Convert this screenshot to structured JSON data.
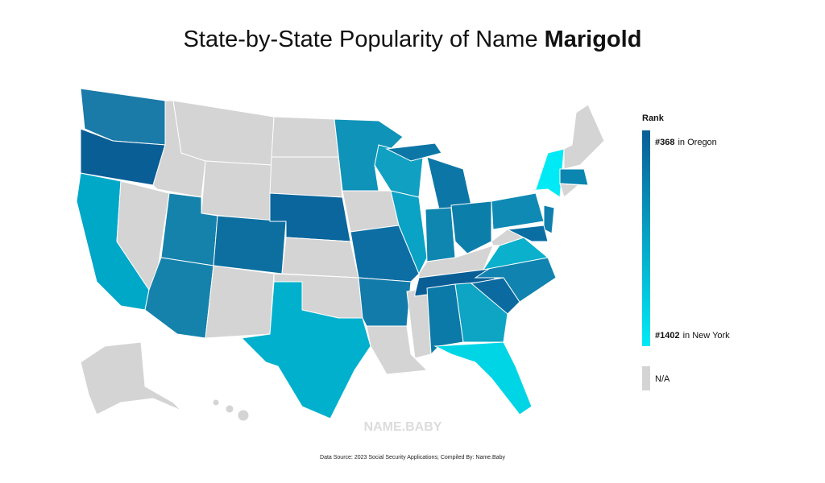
{
  "header": {
    "title_prefix": "State-by-State Popularity of Name",
    "title_name": "Marigold"
  },
  "legend": {
    "title": "Rank",
    "top": {
      "rank": "#368",
      "place": "in Oregon"
    },
    "bottom": {
      "rank": "#1402",
      "place": "in New York"
    },
    "na": "N/A",
    "colors": {
      "high": "#0a5e96",
      "low": "#00eaf5",
      "na": "#d4d4d4"
    }
  },
  "watermark": "NAME.BABY",
  "source": "Data Source: 2023 Social Security Applications; Compiled By: Name.Baby"
}
